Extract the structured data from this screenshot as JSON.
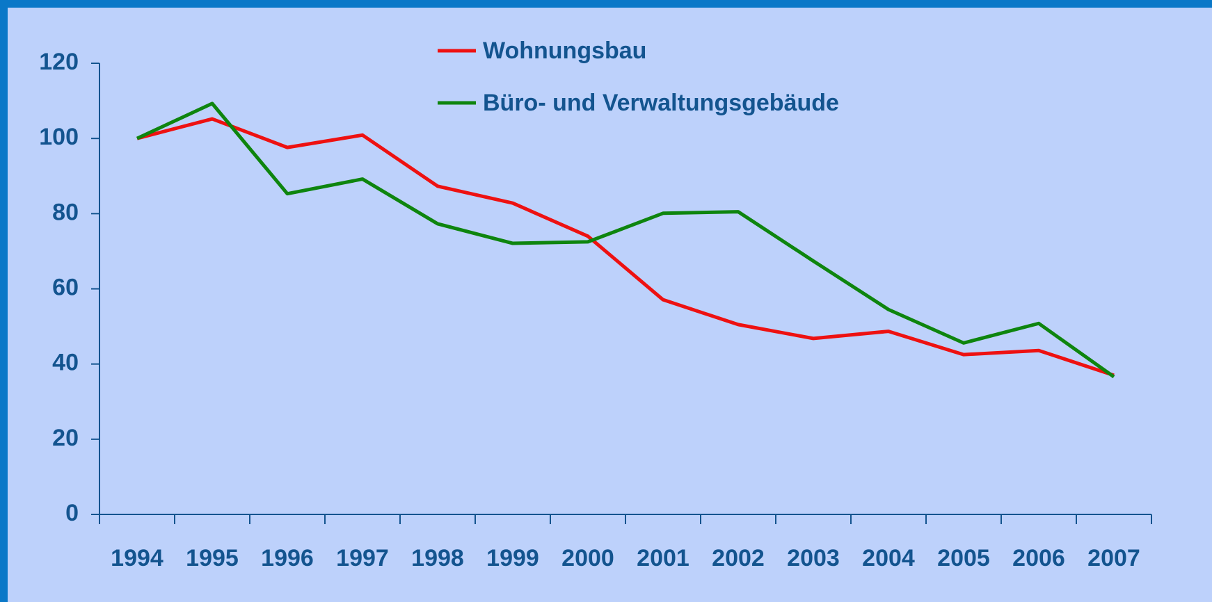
{
  "chart_data": {
    "type": "line",
    "categories": [
      "1994",
      "1995",
      "1996",
      "1997",
      "1998",
      "1999",
      "2000",
      "2001",
      "2002",
      "2003",
      "2004",
      "2005",
      "2006",
      "2007"
    ],
    "series": [
      {
        "name": "Wohnungsbau",
        "color": "#ee1111",
        "values": [
          100,
          105.2,
          97.6,
          100.9,
          87.3,
          82.8,
          74,
          57.1,
          50.5,
          46.8,
          48.7,
          42.5,
          43.6,
          37
        ]
      },
      {
        "name": "Büro- und Verwaltungsgebäude",
        "color": "#0e850e",
        "values": [
          100,
          109.3,
          85.3,
          89.2,
          77.3,
          72.1,
          72.5,
          80.1,
          80.5,
          67.4,
          54.5,
          45.6,
          50.8,
          36.6
        ]
      }
    ],
    "ylim": [
      0,
      120
    ],
    "yticks": [
      0,
      20,
      40,
      60,
      80,
      100,
      120
    ],
    "grid": false,
    "legend": "top"
  }
}
